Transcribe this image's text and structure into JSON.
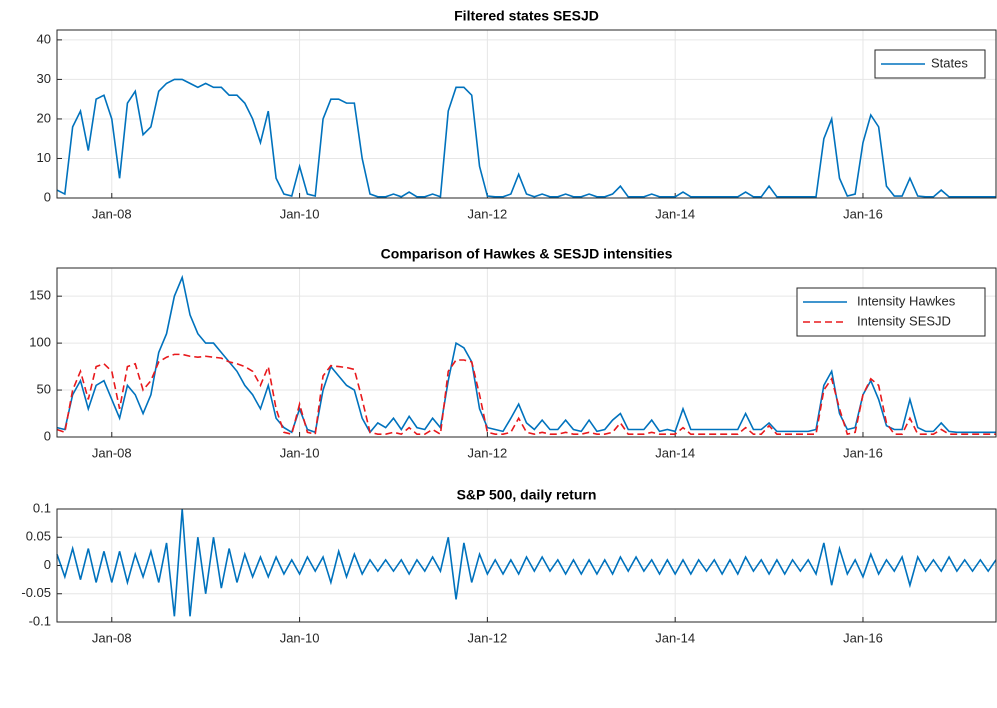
{
  "chart_data": [
    {
      "type": "line",
      "title": "Filtered states SESJD",
      "categories": [
        "Jun-07",
        "Jul-07",
        "Aug-07",
        "Sep-07",
        "Oct-07",
        "Nov-07",
        "Dec-07",
        "Jan-08",
        "Feb-08",
        "Mar-08",
        "Apr-08",
        "May-08",
        "Jun-08",
        "Jul-08",
        "Aug-08",
        "Sep-08",
        "Oct-08",
        "Nov-08",
        "Dec-08",
        "Jan-09",
        "Feb-09",
        "Mar-09",
        "Apr-09",
        "May-09",
        "Jun-09",
        "Jul-09",
        "Aug-09",
        "Sep-09",
        "Oct-09",
        "Nov-09",
        "Dec-09",
        "Jan-10",
        "Feb-10",
        "Mar-10",
        "Apr-10",
        "May-10",
        "Jun-10",
        "Jul-10",
        "Aug-10",
        "Sep-10",
        "Oct-10",
        "Nov-10",
        "Dec-10",
        "Jan-11",
        "Feb-11",
        "Mar-11",
        "Apr-11",
        "May-11",
        "Jun-11",
        "Jul-11",
        "Aug-11",
        "Sep-11",
        "Oct-11",
        "Nov-11",
        "Dec-11",
        "Jan-12",
        "Feb-12",
        "Mar-12",
        "Apr-12",
        "May-12",
        "Jun-12",
        "Jul-12",
        "Aug-12",
        "Sep-12",
        "Oct-12",
        "Nov-12",
        "Dec-12",
        "Jan-13",
        "Feb-13",
        "Mar-13",
        "Apr-13",
        "May-13",
        "Jun-13",
        "Jul-13",
        "Aug-13",
        "Sep-13",
        "Oct-13",
        "Nov-13",
        "Dec-13",
        "Jan-14",
        "Feb-14",
        "Mar-14",
        "Apr-14",
        "May-14",
        "Jun-14",
        "Jul-14",
        "Aug-14",
        "Sep-14",
        "Oct-14",
        "Nov-14",
        "Dec-14",
        "Jan-15",
        "Feb-15",
        "Mar-15",
        "Apr-15",
        "May-15",
        "Jun-15",
        "Jul-15",
        "Aug-15",
        "Sep-15",
        "Oct-15",
        "Nov-15",
        "Dec-15",
        "Jan-16",
        "Feb-16",
        "Mar-16",
        "Apr-16",
        "May-16",
        "Jun-16",
        "Jul-16",
        "Aug-16",
        "Sep-16",
        "Oct-16",
        "Nov-16",
        "Dec-16",
        "Jan-17",
        "Feb-17",
        "Mar-17",
        "Apr-17",
        "May-17",
        "Jun-17"
      ],
      "series": [
        {
          "name": "States",
          "color": "#0072bd",
          "dash": "solid",
          "values": [
            2,
            1,
            18,
            22,
            12,
            25,
            26,
            20,
            5,
            24,
            27,
            16,
            18,
            27,
            29,
            30,
            30,
            29,
            28,
            29,
            28,
            28,
            26,
            26,
            24,
            20,
            14,
            22,
            5,
            1,
            0.5,
            8,
            1,
            0.5,
            20,
            25,
            25,
            24,
            24,
            10,
            1,
            0.3,
            0.3,
            1,
            0.3,
            1.5,
            0.3,
            0.3,
            1,
            0.3,
            22,
            28,
            28,
            26,
            8,
            0.5,
            0.3,
            0.3,
            1,
            6,
            1,
            0.3,
            1,
            0.3,
            0.3,
            1,
            0.3,
            0.3,
            1,
            0.3,
            0.3,
            1,
            3,
            0.3,
            0.3,
            0.3,
            1,
            0.3,
            0.3,
            0.3,
            1.5,
            0.3,
            0.3,
            0.3,
            0.3,
            0.3,
            0.3,
            0.3,
            1.5,
            0.3,
            0.3,
            3,
            0.3,
            0.3,
            0.3,
            0.3,
            0.3,
            0.3,
            15,
            20,
            5,
            0.5,
            1,
            14,
            21,
            18,
            3,
            0.5,
            0.5,
            5,
            0.5,
            0.3,
            0.3,
            2,
            0.3,
            0.3,
            0.3,
            0.3,
            0.3,
            0.3,
            0.3
          ]
        }
      ],
      "xlim": [
        "Jun-07",
        "Jun-17"
      ],
      "xticks": [
        "Jan-08",
        "Jan-10",
        "Jan-12",
        "Jan-14",
        "Jan-16"
      ],
      "ylim": [
        0,
        42.5
      ],
      "yticks": [
        0,
        10,
        20,
        30,
        40
      ],
      "grid": true,
      "legend": "upper right"
    },
    {
      "type": "line",
      "title": "Comparison of Hawkes & SESJD intensities",
      "categories": [
        "Jun-07",
        "Jul-07",
        "Aug-07",
        "Sep-07",
        "Oct-07",
        "Nov-07",
        "Dec-07",
        "Jan-08",
        "Feb-08",
        "Mar-08",
        "Apr-08",
        "May-08",
        "Jun-08",
        "Jul-08",
        "Aug-08",
        "Sep-08",
        "Oct-08",
        "Nov-08",
        "Dec-08",
        "Jan-09",
        "Feb-09",
        "Mar-09",
        "Apr-09",
        "May-09",
        "Jun-09",
        "Jul-09",
        "Aug-09",
        "Sep-09",
        "Oct-09",
        "Nov-09",
        "Dec-09",
        "Jan-10",
        "Feb-10",
        "Mar-10",
        "Apr-10",
        "May-10",
        "Jun-10",
        "Jul-10",
        "Aug-10",
        "Sep-10",
        "Oct-10",
        "Nov-10",
        "Dec-10",
        "Jan-11",
        "Feb-11",
        "Mar-11",
        "Apr-11",
        "May-11",
        "Jun-11",
        "Jul-11",
        "Aug-11",
        "Sep-11",
        "Oct-11",
        "Nov-11",
        "Dec-11",
        "Jan-12",
        "Feb-12",
        "Mar-12",
        "Apr-12",
        "May-12",
        "Jun-12",
        "Jul-12",
        "Aug-12",
        "Sep-12",
        "Oct-12",
        "Nov-12",
        "Dec-12",
        "Jan-13",
        "Feb-13",
        "Mar-13",
        "Apr-13",
        "May-13",
        "Jun-13",
        "Jul-13",
        "Aug-13",
        "Sep-13",
        "Oct-13",
        "Nov-13",
        "Dec-13",
        "Jan-14",
        "Feb-14",
        "Mar-14",
        "Apr-14",
        "May-14",
        "Jun-14",
        "Jul-14",
        "Aug-14",
        "Sep-14",
        "Oct-14",
        "Nov-14",
        "Dec-14",
        "Jan-15",
        "Feb-15",
        "Mar-15",
        "Apr-15",
        "May-15",
        "Jun-15",
        "Jul-15",
        "Aug-15",
        "Sep-15",
        "Oct-15",
        "Nov-15",
        "Dec-15",
        "Jan-16",
        "Feb-16",
        "Mar-16",
        "Apr-16",
        "May-16",
        "Jun-16",
        "Jul-16",
        "Aug-16",
        "Sep-16",
        "Oct-16",
        "Nov-16",
        "Dec-16",
        "Jan-17",
        "Feb-17",
        "Mar-17",
        "Apr-17",
        "May-17",
        "Jun-17"
      ],
      "series": [
        {
          "name": "Intensity Hawkes",
          "color": "#0072bd",
          "dash": "solid",
          "values": [
            10,
            8,
            45,
            60,
            30,
            55,
            60,
            40,
            20,
            55,
            45,
            25,
            45,
            90,
            110,
            150,
            170,
            130,
            110,
            100,
            100,
            90,
            80,
            70,
            55,
            45,
            30,
            55,
            20,
            10,
            5,
            30,
            8,
            5,
            50,
            75,
            65,
            55,
            50,
            20,
            5,
            15,
            10,
            20,
            8,
            22,
            10,
            8,
            20,
            10,
            60,
            100,
            95,
            80,
            30,
            10,
            8,
            6,
            20,
            35,
            15,
            8,
            18,
            8,
            8,
            18,
            8,
            6,
            18,
            6,
            8,
            18,
            25,
            8,
            8,
            8,
            18,
            6,
            8,
            6,
            30,
            8,
            8,
            8,
            8,
            8,
            8,
            8,
            25,
            8,
            8,
            15,
            6,
            6,
            6,
            6,
            6,
            8,
            55,
            70,
            25,
            8,
            10,
            45,
            60,
            40,
            12,
            8,
            8,
            40,
            10,
            6,
            6,
            15,
            6,
            5,
            5,
            5,
            5,
            5,
            5
          ]
        },
        {
          "name": "Intensity SESJD",
          "color": "#e8191c",
          "dash": "dashed",
          "values": [
            8,
            5,
            50,
            70,
            40,
            75,
            78,
            70,
            30,
            75,
            78,
            50,
            60,
            80,
            85,
            88,
            88,
            86,
            85,
            86,
            85,
            84,
            80,
            78,
            75,
            70,
            55,
            75,
            30,
            5,
            3,
            35,
            5,
            3,
            65,
            76,
            75,
            74,
            72,
            40,
            5,
            3,
            3,
            5,
            3,
            10,
            3,
            3,
            8,
            3,
            70,
            82,
            82,
            80,
            45,
            5,
            3,
            3,
            5,
            20,
            5,
            3,
            5,
            3,
            3,
            5,
            3,
            3,
            5,
            3,
            3,
            5,
            15,
            3,
            3,
            3,
            5,
            3,
            3,
            3,
            10,
            3,
            3,
            3,
            3,
            3,
            3,
            3,
            10,
            3,
            3,
            12,
            3,
            3,
            3,
            3,
            3,
            3,
            50,
            62,
            30,
            3,
            5,
            45,
            62,
            55,
            15,
            3,
            3,
            20,
            3,
            3,
            3,
            8,
            3,
            3,
            3,
            3,
            3,
            3,
            3
          ]
        }
      ],
      "xlim": [
        "Jun-07",
        "Jun-17"
      ],
      "xticks": [
        "Jan-08",
        "Jan-10",
        "Jan-12",
        "Jan-14",
        "Jan-16"
      ],
      "ylim": [
        0,
        180
      ],
      "yticks": [
        0,
        50,
        100,
        150
      ],
      "grid": true,
      "legend": "upper right"
    },
    {
      "type": "line",
      "title": "S&P 500, daily return",
      "categories": [
        "Jun-07",
        "Jul-07",
        "Aug-07",
        "Sep-07",
        "Oct-07",
        "Nov-07",
        "Dec-07",
        "Jan-08",
        "Feb-08",
        "Mar-08",
        "Apr-08",
        "May-08",
        "Jun-08",
        "Jul-08",
        "Aug-08",
        "Sep-08",
        "Oct-08",
        "Nov-08",
        "Dec-08",
        "Jan-09",
        "Feb-09",
        "Mar-09",
        "Apr-09",
        "May-09",
        "Jun-09",
        "Jul-09",
        "Aug-09",
        "Sep-09",
        "Oct-09",
        "Nov-09",
        "Dec-09",
        "Jan-10",
        "Feb-10",
        "Mar-10",
        "Apr-10",
        "May-10",
        "Jun-10",
        "Jul-10",
        "Aug-10",
        "Sep-10",
        "Oct-10",
        "Nov-10",
        "Dec-10",
        "Jan-11",
        "Feb-11",
        "Mar-11",
        "Apr-11",
        "May-11",
        "Jun-11",
        "Jul-11",
        "Aug-11",
        "Sep-11",
        "Oct-11",
        "Nov-11",
        "Dec-11",
        "Jan-12",
        "Feb-12",
        "Mar-12",
        "Apr-12",
        "May-12",
        "Jun-12",
        "Jul-12",
        "Aug-12",
        "Sep-12",
        "Oct-12",
        "Nov-12",
        "Dec-12",
        "Jan-13",
        "Feb-13",
        "Mar-13",
        "Apr-13",
        "May-13",
        "Jun-13",
        "Jul-13",
        "Aug-13",
        "Sep-13",
        "Oct-13",
        "Nov-13",
        "Dec-13",
        "Jan-14",
        "Feb-14",
        "Mar-14",
        "Apr-14",
        "May-14",
        "Jun-14",
        "Jul-14",
        "Aug-14",
        "Sep-14",
        "Oct-14",
        "Nov-14",
        "Dec-14",
        "Jan-15",
        "Feb-15",
        "Mar-15",
        "Apr-15",
        "May-15",
        "Jun-15",
        "Jul-15",
        "Aug-15",
        "Sep-15",
        "Oct-15",
        "Nov-15",
        "Dec-15",
        "Jan-16",
        "Feb-16",
        "Mar-16",
        "Apr-16",
        "May-16",
        "Jun-16",
        "Jul-16",
        "Aug-16",
        "Sep-16",
        "Oct-16",
        "Nov-16",
        "Dec-16",
        "Jan-17",
        "Feb-17",
        "Mar-17",
        "Apr-17",
        "May-17",
        "Jun-17"
      ],
      "series": [
        {
          "color": "#0072bd",
          "dash": "solid",
          "values": [
            0.02,
            -0.02,
            0.03,
            -0.025,
            0.03,
            -0.03,
            0.025,
            -0.03,
            0.025,
            -0.03,
            0.02,
            -0.02,
            0.025,
            -0.03,
            0.04,
            -0.09,
            0.1,
            -0.09,
            0.05,
            -0.05,
            0.05,
            -0.04,
            0.03,
            -0.03,
            0.02,
            -0.02,
            0.015,
            -0.02,
            0.015,
            -0.015,
            0.01,
            -0.015,
            0.015,
            -0.01,
            0.015,
            -0.03,
            0.025,
            -0.02,
            0.02,
            -0.015,
            0.01,
            -0.01,
            0.01,
            -0.01,
            0.01,
            -0.015,
            0.01,
            -0.01,
            0.015,
            -0.01,
            0.05,
            -0.06,
            0.04,
            -0.03,
            0.02,
            -0.015,
            0.01,
            -0.015,
            0.01,
            -0.015,
            0.015,
            -0.01,
            0.015,
            -0.01,
            0.01,
            -0.015,
            0.01,
            -0.015,
            0.01,
            -0.015,
            0.01,
            -0.015,
            0.015,
            -0.01,
            0.015,
            -0.01,
            0.01,
            -0.015,
            0.01,
            -0.015,
            0.01,
            -0.015,
            0.01,
            -0.01,
            0.01,
            -0.015,
            0.01,
            -0.015,
            0.015,
            -0.01,
            0.01,
            -0.015,
            0.01,
            -0.015,
            0.01,
            -0.01,
            0.01,
            -0.015,
            0.04,
            -0.035,
            0.03,
            -0.015,
            0.01,
            -0.02,
            0.02,
            -0.015,
            0.01,
            -0.01,
            0.015,
            -0.035,
            0.015,
            -0.01,
            0.01,
            -0.01,
            0.015,
            -0.01,
            0.01,
            -0.01,
            0.01,
            -0.01,
            0.01
          ]
        }
      ],
      "xlim": [
        "Jun-07",
        "Jun-17"
      ],
      "xticks": [
        "Jan-08",
        "Jan-10",
        "Jan-12",
        "Jan-14",
        "Jan-16"
      ],
      "ylim": [
        -0.1,
        0.1
      ],
      "yticks": [
        -0.1,
        -0.05,
        0,
        0.05,
        0.1
      ],
      "grid": true
    }
  ]
}
